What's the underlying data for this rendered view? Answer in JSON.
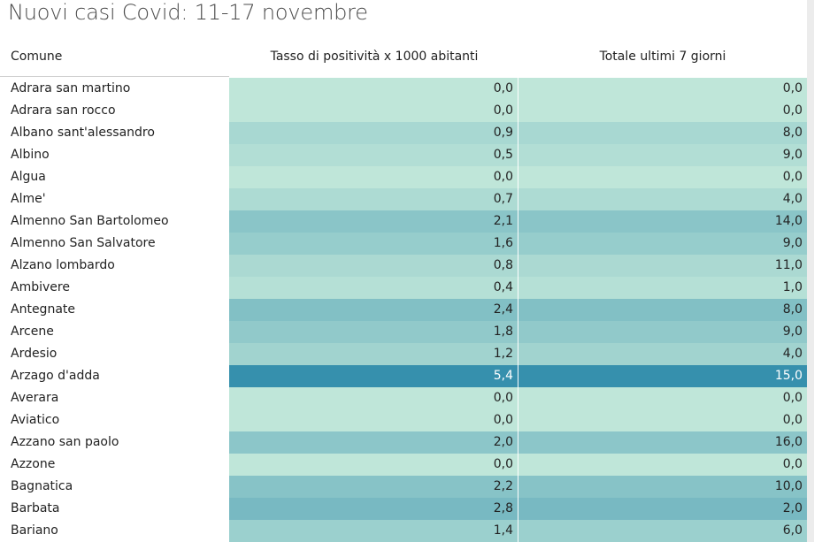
{
  "title": "Nuovi casi Covid: 11-17 novembre",
  "headers": {
    "comune": "Comune",
    "tasso": "Tasso di positività x 1000 abitanti",
    "totale": "Totale ultimi 7 giorni"
  },
  "colors": {
    "scale_low": "#bfe6d9",
    "scale_high": "#3690ad",
    "hot_text": "#ffffff"
  },
  "chart_data": {
    "type": "table",
    "title": "Nuovi casi Covid: 11-17 novembre",
    "columns": [
      "Comune",
      "Tasso di positività x 1000 abitanti",
      "Totale ultimi 7 giorni"
    ],
    "rows": [
      {
        "comune": "Adrara san martino",
        "tasso": "0,0",
        "totale": "0,0"
      },
      {
        "comune": "Adrara san rocco",
        "tasso": "0,0",
        "totale": "0,0"
      },
      {
        "comune": "Albano sant'alessandro",
        "tasso": "0,9",
        "totale": "8,0"
      },
      {
        "comune": "Albino",
        "tasso": "0,5",
        "totale": "9,0"
      },
      {
        "comune": "Algua",
        "tasso": "0,0",
        "totale": "0,0"
      },
      {
        "comune": "Alme'",
        "tasso": "0,7",
        "totale": "4,0"
      },
      {
        "comune": "Almenno San Bartolomeo",
        "tasso": "2,1",
        "totale": "14,0"
      },
      {
        "comune": "Almenno San Salvatore",
        "tasso": "1,6",
        "totale": "9,0"
      },
      {
        "comune": "Alzano lombardo",
        "tasso": "0,8",
        "totale": "11,0"
      },
      {
        "comune": "Ambivere",
        "tasso": "0,4",
        "totale": "1,0"
      },
      {
        "comune": "Antegnate",
        "tasso": "2,4",
        "totale": "8,0"
      },
      {
        "comune": "Arcene",
        "tasso": "1,8",
        "totale": "9,0"
      },
      {
        "comune": "Ardesio",
        "tasso": "1,2",
        "totale": "4,0"
      },
      {
        "comune": "Arzago d'adda",
        "tasso": "5,4",
        "totale": "15,0"
      },
      {
        "comune": "Averara",
        "tasso": "0,0",
        "totale": "0,0"
      },
      {
        "comune": "Aviatico",
        "tasso": "0,0",
        "totale": "0,0"
      },
      {
        "comune": "Azzano san paolo",
        "tasso": "2,0",
        "totale": "16,0"
      },
      {
        "comune": "Azzone",
        "tasso": "0,0",
        "totale": "0,0"
      },
      {
        "comune": "Bagnatica",
        "tasso": "2,2",
        "totale": "10,0"
      },
      {
        "comune": "Barbata",
        "tasso": "2,8",
        "totale": "2,0"
      },
      {
        "comune": "Bariano",
        "tasso": "1,4",
        "totale": "6,0"
      }
    ]
  }
}
